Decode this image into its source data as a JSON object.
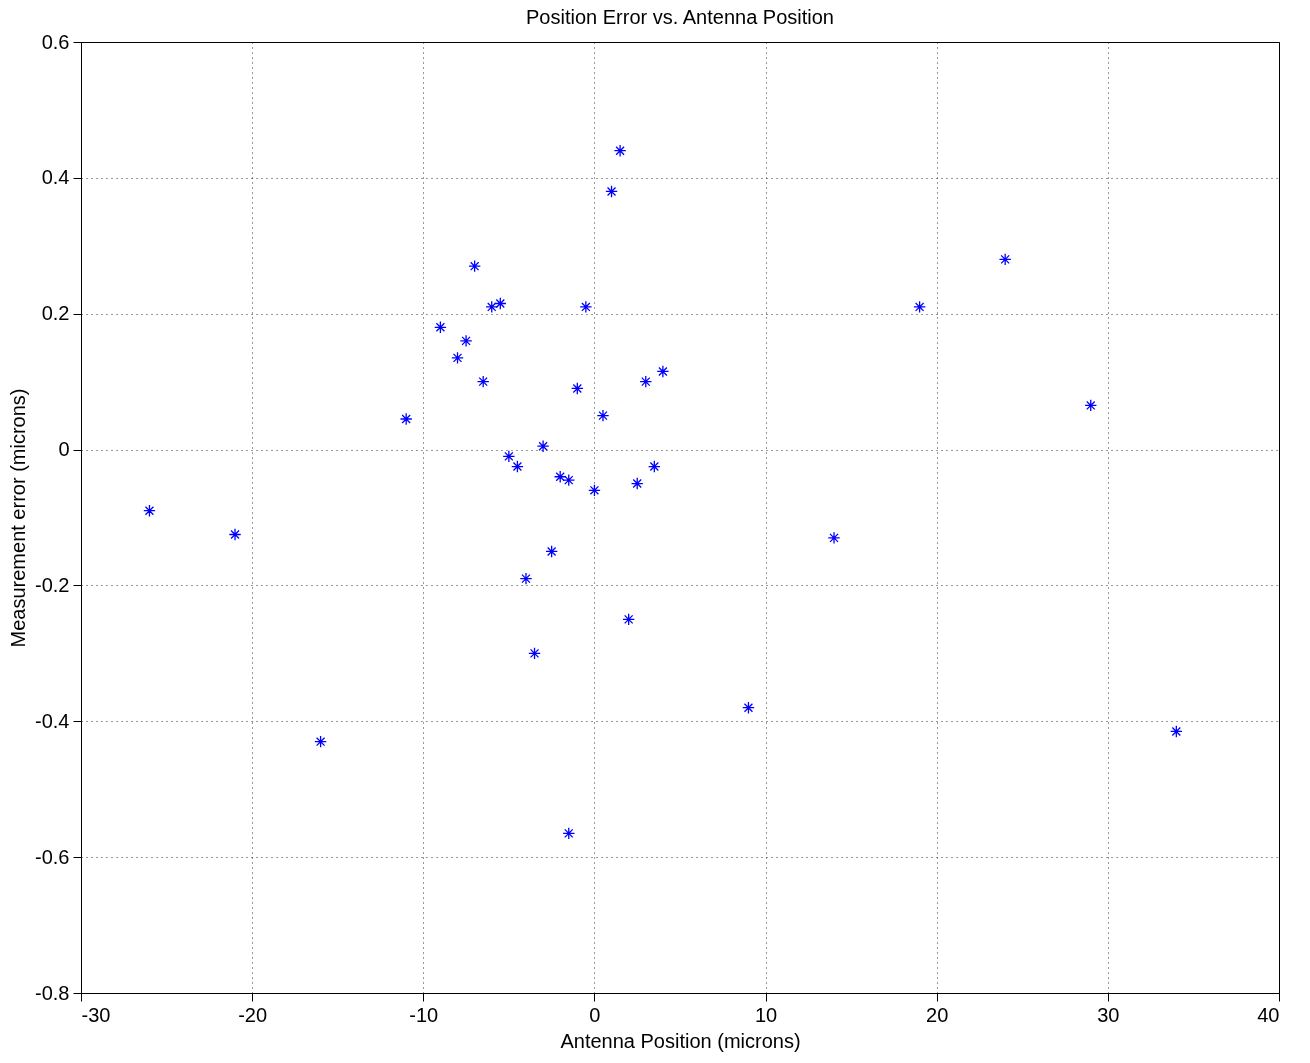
{
  "chart_data": {
    "type": "scatter",
    "title": "Position Error vs. Antenna Position",
    "xlabel": "Antenna Position (microns)",
    "ylabel": "Measurement error (microns)",
    "xlim": [
      -30,
      40
    ],
    "xticks": [
      -30,
      -20,
      -10,
      0,
      10,
      20,
      30,
      40
    ],
    "ylim": [
      -0.8,
      0.6
    ],
    "yticks": [
      -0.8,
      -0.6,
      -0.4,
      -0.2,
      0,
      0.2,
      0.4,
      0.6
    ],
    "grid": true,
    "marker": "cross",
    "series": [
      {
        "color": "#0000ff",
        "x": [
          -26,
          -21,
          -16,
          -11,
          -9,
          -8,
          -7.5,
          -7,
          -6.5,
          -6,
          -5.5,
          -5,
          -4.5,
          -4,
          -3.5,
          -3,
          -2.5,
          -2,
          -1.5,
          -1.5,
          -1,
          -0.5,
          0,
          0.5,
          1,
          1.5,
          2,
          2.5,
          3,
          3.5,
          4,
          9,
          14,
          19,
          24,
          29,
          34
        ],
        "values": [
          -0.09,
          -0.125,
          -0.43,
          0.045,
          0.18,
          0.135,
          0.16,
          0.27,
          0.1,
          0.21,
          0.215,
          -0.01,
          -0.025,
          -0.19,
          -0.3,
          0.005,
          -0.15,
          -0.04,
          -0.045,
          -0.565,
          0.09,
          0.21,
          -0.06,
          0.05,
          0.38,
          0.44,
          -0.25,
          -0.05,
          0.1,
          -0.025,
          0.115,
          -0.38,
          -0.13,
          0.21,
          0.28,
          0.065,
          -0.415
        ]
      }
    ]
  }
}
